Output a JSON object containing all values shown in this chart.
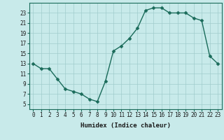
{
  "x": [
    0,
    1,
    2,
    3,
    4,
    5,
    6,
    7,
    8,
    9,
    10,
    11,
    12,
    13,
    14,
    15,
    16,
    17,
    18,
    19,
    20,
    21,
    22,
    23
  ],
  "y": [
    13,
    12,
    12,
    10,
    8,
    7.5,
    7,
    6,
    5.5,
    9.5,
    15.5,
    16.5,
    18,
    20,
    23.5,
    24,
    24,
    23,
    23,
    23,
    22,
    21.5,
    14.5,
    13
  ],
  "line_color": "#1a6b5a",
  "marker_color": "#1a6b5a",
  "bg_color": "#c8eaea",
  "grid_color": "#a0cccc",
  "xlabel": "Humidex (Indice chaleur)",
  "ylim": [
    4,
    25
  ],
  "xlim": [
    -0.5,
    23.5
  ],
  "yticks": [
    5,
    7,
    9,
    11,
    13,
    15,
    17,
    19,
    21,
    23
  ],
  "xticks": [
    0,
    1,
    2,
    3,
    4,
    5,
    6,
    7,
    8,
    9,
    10,
    11,
    12,
    13,
    14,
    15,
    16,
    17,
    18,
    19,
    20,
    21,
    22,
    23
  ],
  "tick_fontsize": 5.5,
  "label_fontsize": 6.5,
  "line_width": 1.0,
  "marker_size": 2.5
}
